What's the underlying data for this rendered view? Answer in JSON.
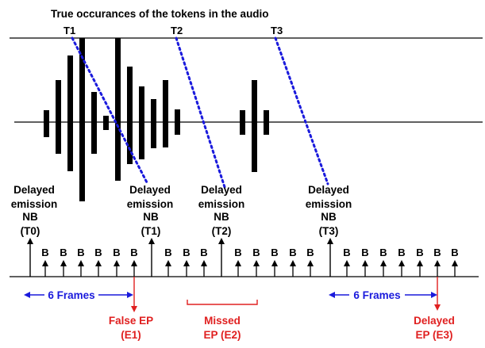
{
  "title": "True occurances of the tokens in the audio",
  "tokens": [
    "T1",
    "T2",
    "T3"
  ],
  "delayed_label_line1": "Delayed",
  "delayed_label_line2": "emission",
  "emissions": [
    {
      "nb": "NB",
      "token": "(T0)"
    },
    {
      "nb": "NB",
      "token": "(T1)"
    },
    {
      "nb": "NB",
      "token": "(T2)"
    },
    {
      "nb": "NB",
      "token": "(T3)"
    }
  ],
  "blank_label": "B",
  "frames_label": "6 Frames",
  "endpoints": [
    {
      "line1": "False EP",
      "line2": "(E1)"
    },
    {
      "line1": "Missed",
      "line2": "EP (E2)"
    },
    {
      "line1": "Delayed",
      "line2": "EP (E3)"
    }
  ],
  "colors": {
    "ink": "#000000",
    "token_path": "#1a1adc",
    "frames": "#1a1adc",
    "endpoint": "#e02020"
  }
}
